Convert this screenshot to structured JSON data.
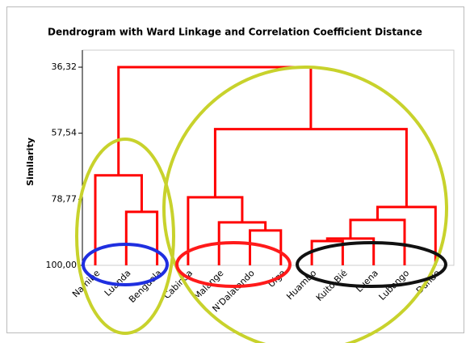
{
  "chart_data": {
    "type": "dendrogram",
    "title": "Dendrogram with Ward Linkage and Correlation Coefficient Distance",
    "y_label": "Similarity",
    "color": "#ff0000",
    "leaves": [
      "Namibe",
      "Luanda",
      "Benguela",
      "Cabinda",
      "Malange",
      "N'Dalatando",
      "Uige",
      "Huambo",
      "Kuito-Bié",
      "Luena",
      "Lubango",
      "Dundo"
    ],
    "merges": [
      {
        "left": 1,
        "right": 2,
        "similarity": 82.81
      },
      {
        "left": 0,
        "right": 12,
        "similarity": 71.09
      },
      {
        "left": 5,
        "right": 6,
        "similarity": 88.8
      },
      {
        "left": 4,
        "right": 14,
        "similarity": 86.2
      },
      {
        "left": 3,
        "right": 15,
        "similarity": 78.12
      },
      {
        "left": 7,
        "right": 8,
        "similarity": 92.19
      },
      {
        "left": 17,
        "right": 9,
        "similarity": 91.4
      },
      {
        "left": 18,
        "right": 10,
        "similarity": 85.42
      },
      {
        "left": 19,
        "right": 11,
        "similarity": 81.25
      },
      {
        "left": 16,
        "right": 20,
        "similarity": 56.24
      },
      {
        "left": 13,
        "right": 21,
        "similarity": 36.32
      }
    ],
    "ylim": [
      100,
      30.85
    ],
    "yticks": [
      {
        "value": 36.32,
        "label": "36,32"
      },
      {
        "value": 57.54,
        "label": "57,54"
      },
      {
        "value": 78.77,
        "label": "78,77"
      },
      {
        "value": 100,
        "label": "100,00"
      }
    ]
  }
}
